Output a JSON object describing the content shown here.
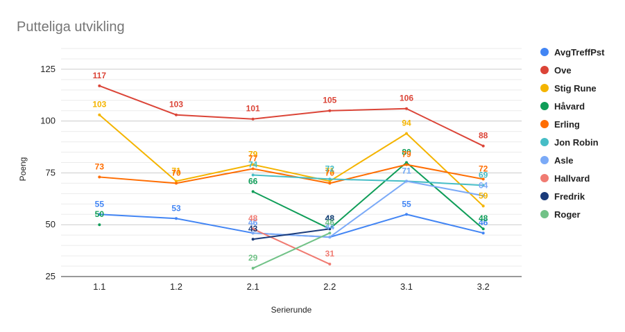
{
  "chart_data": {
    "type": "line",
    "title": "Putteliga utvikling",
    "xlabel": "Serierunde",
    "ylabel": "Poeng",
    "categories": [
      "1.1",
      "1.2",
      "2.1",
      "2.2",
      "3.1",
      "3.2"
    ],
    "ylim": [
      25,
      135
    ],
    "yticks": [
      25,
      50,
      75,
      100,
      125
    ],
    "grid": true,
    "legend": "right",
    "series": [
      {
        "name": "AvgTreffPst",
        "color": "#4285f4",
        "values": [
          55,
          53,
          46,
          44,
          55,
          46
        ]
      },
      {
        "name": "Ove",
        "color": "#db4437",
        "values": [
          117,
          103,
          101,
          105,
          106,
          88
        ]
      },
      {
        "name": "Stig Rune",
        "color": "#f4b400",
        "values": [
          103,
          71,
          79,
          71,
          94,
          59
        ]
      },
      {
        "name": "Håvard",
        "color": "#0f9d58",
        "values": [
          50,
          null,
          66,
          48,
          80,
          48
        ]
      },
      {
        "name": "Erling",
        "color": "#ff6d01",
        "values": [
          73,
          70,
          77,
          70,
          79,
          72
        ]
      },
      {
        "name": "Jon Robin",
        "color": "#46bdc6",
        "values": [
          null,
          null,
          74,
          72,
          71,
          69
        ]
      },
      {
        "name": "Asle",
        "color": "#7baaf7",
        "values": [
          null,
          null,
          46,
          44,
          71,
          64
        ]
      },
      {
        "name": "Hallvard",
        "color": "#f07b72",
        "values": [
          null,
          null,
          48,
          31,
          null,
          null
        ]
      },
      {
        "name": "Fredrik",
        "color": "#1a3b7a",
        "values": [
          null,
          null,
          43,
          48,
          null,
          null
        ]
      },
      {
        "name": "Roger",
        "color": "#71c287",
        "values": [
          null,
          null,
          29,
          46,
          null,
          null
        ]
      }
    ]
  }
}
